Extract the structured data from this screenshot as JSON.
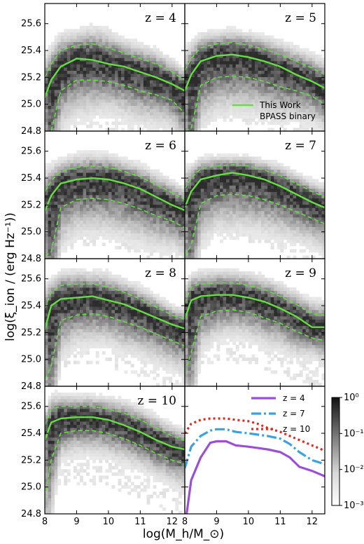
{
  "colors": {
    "median_line": "#66dd44",
    "percentile_line": "#66dd44",
    "z4_line": "#9b4fd6",
    "z7_line": "#3aa3dd",
    "z10_line": "#e02a1a",
    "density_dark": "#333333",
    "density_light": "#f4f4f4"
  },
  "chart_data": {
    "type": "heatmap",
    "xlabel": "log(M_h/M_⊙)",
    "ylabel": "log(ξ_ion / (erg Hz⁻¹))",
    "xlim": [
      8.0,
      12.4
    ],
    "ylim": [
      24.8,
      25.75
    ],
    "x_ticks": [
      "8",
      "9",
      "10",
      "11",
      "12"
    ],
    "y_ticks": [
      "24.8",
      "25.0",
      "25.2",
      "25.4",
      "25.6"
    ],
    "panels": [
      {
        "label": "z = 4",
        "x": [
          8.0,
          8.2,
          8.5,
          9.0,
          9.5,
          10.0,
          10.5,
          11.0,
          11.5,
          12.0,
          12.4
        ],
        "median": [
          25.05,
          25.18,
          25.28,
          25.34,
          25.33,
          25.3,
          25.28,
          25.24,
          25.2,
          25.15,
          25.1
        ],
        "p_high": [
          25.2,
          25.3,
          25.4,
          25.44,
          25.45,
          25.42,
          25.38,
          25.34,
          25.3,
          25.24,
          25.18
        ],
        "p_low": [
          24.8,
          24.8,
          25.1,
          25.18,
          25.18,
          25.17,
          25.14,
          25.1,
          25.07,
          25.03,
          24.93
        ]
      },
      {
        "label": "z = 5",
        "x": [
          8.0,
          8.2,
          8.5,
          9.0,
          9.5,
          10.0,
          10.5,
          11.0,
          11.5,
          12.0,
          12.4
        ],
        "median": [
          25.1,
          25.22,
          25.32,
          25.36,
          25.37,
          25.35,
          25.32,
          25.28,
          25.22,
          25.17,
          25.12
        ],
        "p_high": [
          25.25,
          25.34,
          25.42,
          25.45,
          25.46,
          25.44,
          25.41,
          25.37,
          25.32,
          25.27,
          25.22
        ],
        "p_low": [
          24.8,
          24.82,
          25.14,
          25.2,
          25.21,
          25.2,
          25.17,
          25.13,
          25.1,
          25.06,
          25.0
        ]
      },
      {
        "label": "z = 6",
        "x": [
          8.0,
          8.2,
          8.5,
          9.0,
          9.5,
          10.0,
          10.5,
          11.0,
          11.5,
          12.0,
          12.4
        ],
        "median": [
          25.15,
          25.27,
          25.36,
          25.39,
          25.4,
          25.39,
          25.36,
          25.32,
          25.26,
          25.2,
          25.16
        ],
        "p_high": [
          25.3,
          25.38,
          25.45,
          25.48,
          25.49,
          25.48,
          25.45,
          25.41,
          25.35,
          25.29,
          25.24
        ],
        "p_low": [
          24.82,
          24.85,
          25.18,
          25.24,
          25.25,
          25.24,
          25.21,
          25.17,
          25.12,
          25.08,
          25.03
        ]
      },
      {
        "label": "z = 7",
        "x": [
          8.0,
          8.2,
          8.5,
          9.0,
          9.5,
          10.0,
          10.5,
          11.0,
          11.5,
          12.0,
          12.4
        ],
        "median": [
          25.18,
          25.3,
          25.39,
          25.42,
          25.44,
          25.42,
          25.39,
          25.34,
          25.28,
          25.22,
          25.18
        ],
        "p_high": [
          25.32,
          25.4,
          25.47,
          25.49,
          25.5,
          25.49,
          25.46,
          25.42,
          25.36,
          25.3,
          25.26
        ],
        "p_low": [
          24.82,
          24.9,
          25.21,
          25.27,
          25.28,
          25.27,
          25.24,
          25.2,
          25.15,
          25.1,
          25.06
        ]
      },
      {
        "label": "z = 8",
        "x": [
          8.0,
          8.2,
          8.5,
          9.0,
          9.5,
          10.0,
          10.5,
          11.0,
          11.5,
          12.0,
          12.4
        ],
        "median": [
          25.22,
          25.4,
          25.45,
          25.46,
          25.47,
          25.44,
          25.41,
          25.36,
          25.31,
          25.26,
          25.23
        ],
        "p_high": [
          25.38,
          25.5,
          25.55,
          25.56,
          25.56,
          25.54,
          25.5,
          25.45,
          25.39,
          25.33,
          25.3
        ],
        "p_low": [
          24.85,
          24.95,
          25.29,
          25.33,
          25.34,
          25.32,
          25.28,
          25.24,
          25.19,
          25.14,
          25.1
        ]
      },
      {
        "label": "z = 9",
        "x": [
          8.0,
          8.2,
          8.5,
          9.0,
          9.5,
          10.0,
          10.5,
          11.0,
          11.5,
          12.0,
          12.4
        ],
        "median": [
          25.3,
          25.44,
          25.47,
          25.48,
          25.48,
          25.46,
          25.43,
          25.38,
          25.32,
          25.24,
          25.24
        ],
        "p_high": [
          25.42,
          25.54,
          25.56,
          25.57,
          25.57,
          25.55,
          25.52,
          25.47,
          25.41,
          25.34,
          25.33
        ],
        "p_low": [
          24.9,
          25.05,
          25.32,
          25.36,
          25.37,
          25.35,
          25.31,
          25.27,
          25.21,
          25.16,
          25.14
        ]
      },
      {
        "label": "z = 10",
        "x": [
          8.0,
          8.2,
          8.5,
          9.0,
          9.5,
          10.0,
          10.5,
          11.0,
          11.5,
          12.0,
          12.4
        ],
        "median": [
          25.35,
          25.48,
          25.51,
          25.52,
          25.52,
          25.5,
          25.46,
          25.41,
          25.35,
          25.3,
          25.28
        ],
        "p_high": [
          25.46,
          25.58,
          25.6,
          25.6,
          25.6,
          25.58,
          25.55,
          25.5,
          25.44,
          25.38,
          25.35
        ],
        "p_low": [
          24.92,
          25.2,
          25.4,
          25.42,
          25.42,
          25.4,
          25.36,
          25.31,
          25.25,
          25.2,
          25.17
        ]
      }
    ],
    "legend_top": {
      "entries": [
        "This Work",
        "BPASS binary"
      ]
    },
    "comparison": {
      "x": [
        8.0,
        8.2,
        8.5,
        8.8,
        9.0,
        9.3,
        9.6,
        10.0,
        10.3,
        10.6,
        11.0,
        11.3,
        11.6,
        12.0,
        12.4
      ],
      "series": [
        {
          "name": "z = 4",
          "values": [
            24.7,
            25.05,
            25.22,
            25.33,
            25.34,
            25.34,
            25.31,
            25.3,
            25.29,
            25.28,
            25.26,
            25.22,
            25.15,
            25.12,
            25.08
          ]
        },
        {
          "name": "z = 7",
          "values": [
            25.14,
            25.3,
            25.38,
            25.42,
            25.43,
            25.43,
            25.41,
            25.4,
            25.39,
            25.38,
            25.36,
            25.32,
            25.26,
            25.2,
            25.17
          ]
        },
        {
          "name": "z = 10",
          "values": [
            25.4,
            25.47,
            25.5,
            25.51,
            25.51,
            25.51,
            25.5,
            25.49,
            25.47,
            25.44,
            25.41,
            25.38,
            25.35,
            25.31,
            25.27
          ]
        }
      ]
    },
    "colorbar": {
      "scale": "log",
      "ticks": [
        "10⁰",
        "10⁻¹",
        "10⁻²",
        "10⁻³"
      ]
    }
  }
}
